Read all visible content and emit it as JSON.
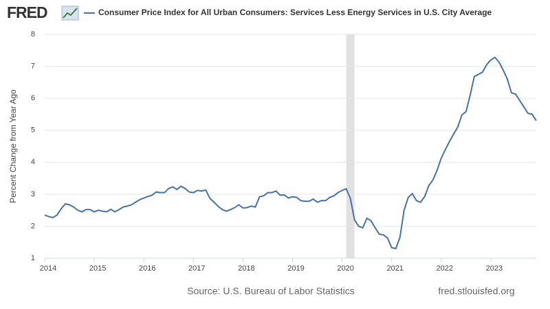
{
  "logo": "FRED",
  "chart_data": {
    "type": "line",
    "series": [
      {
        "name": "Consumer Price Index for All Urban Consumers: Services Less Energy Services in U.S. City Average",
        "color": "#4572a7",
        "values": [
          2.35,
          2.3,
          2.27,
          2.35,
          2.55,
          2.7,
          2.67,
          2.6,
          2.5,
          2.45,
          2.52,
          2.52,
          2.45,
          2.5,
          2.47,
          2.45,
          2.53,
          2.45,
          2.52,
          2.6,
          2.63,
          2.67,
          2.75,
          2.83,
          2.88,
          2.93,
          2.97,
          3.07,
          3.05,
          3.05,
          3.18,
          3.23,
          3.15,
          3.25,
          3.18,
          3.07,
          3.05,
          3.12,
          3.1,
          3.13,
          2.87,
          2.75,
          2.62,
          2.52,
          2.47,
          2.52,
          2.58,
          2.67,
          2.57,
          2.58,
          2.63,
          2.6,
          2.92,
          2.95,
          3.05,
          3.05,
          3.1,
          2.97,
          2.98,
          2.88,
          2.92,
          2.9,
          2.8,
          2.78,
          2.78,
          2.85,
          2.75,
          2.8,
          2.8,
          2.9,
          2.95,
          3.05,
          3.12,
          3.17,
          2.87,
          2.2,
          2.0,
          1.95,
          2.25,
          2.17,
          1.95,
          1.75,
          1.73,
          1.63,
          1.33,
          1.3,
          1.65,
          2.5,
          2.9,
          3.02,
          2.8,
          2.75,
          2.93,
          3.27,
          3.45,
          3.75,
          4.13,
          4.4,
          4.65,
          4.88,
          5.1,
          5.48,
          5.58,
          6.1,
          6.68,
          6.75,
          6.82,
          7.05,
          7.2,
          7.28,
          7.13,
          6.88,
          6.6,
          6.17,
          6.13,
          5.93,
          5.73,
          5.53,
          5.5,
          5.3
        ]
      }
    ],
    "x": [
      "2014-01",
      "2014-02",
      "2014-03",
      "2014-04",
      "2014-05",
      "2014-06",
      "2014-07",
      "2014-08",
      "2014-09",
      "2014-10",
      "2014-11",
      "2014-12",
      "2015-01",
      "2015-02",
      "2015-03",
      "2015-04",
      "2015-05",
      "2015-06",
      "2015-07",
      "2015-08",
      "2015-09",
      "2015-10",
      "2015-11",
      "2015-12",
      "2016-01",
      "2016-02",
      "2016-03",
      "2016-04",
      "2016-05",
      "2016-06",
      "2016-07",
      "2016-08",
      "2016-09",
      "2016-10",
      "2016-11",
      "2016-12",
      "2017-01",
      "2017-02",
      "2017-03",
      "2017-04",
      "2017-05",
      "2017-06",
      "2017-07",
      "2017-08",
      "2017-09",
      "2017-10",
      "2017-11",
      "2017-12",
      "2018-01",
      "2018-02",
      "2018-03",
      "2018-04",
      "2018-05",
      "2018-06",
      "2018-07",
      "2018-08",
      "2018-09",
      "2018-10",
      "2018-11",
      "2018-12",
      "2019-01",
      "2019-02",
      "2019-03",
      "2019-04",
      "2019-05",
      "2019-06",
      "2019-07",
      "2019-08",
      "2019-09",
      "2019-10",
      "2019-11",
      "2019-12",
      "2020-01",
      "2020-02",
      "2020-03",
      "2020-04",
      "2020-05",
      "2020-06",
      "2020-07",
      "2020-08",
      "2020-09",
      "2020-10",
      "2020-11",
      "2020-12",
      "2021-01",
      "2021-02",
      "2021-03",
      "2021-04",
      "2021-05",
      "2021-06",
      "2021-07",
      "2021-08",
      "2021-09",
      "2021-10",
      "2021-11",
      "2021-12",
      "2022-01",
      "2022-02",
      "2022-03",
      "2022-04",
      "2022-05",
      "2022-06",
      "2022-07",
      "2022-08",
      "2022-09",
      "2022-10",
      "2022-11",
      "2022-12",
      "2023-01",
      "2023-02",
      "2023-03",
      "2023-04",
      "2023-05",
      "2023-06",
      "2023-07",
      "2023-08",
      "2023-09",
      "2023-10",
      "2023-11",
      "2023-12"
    ],
    "xlim": [
      "2014-01",
      "2023-12"
    ],
    "xticks": [
      2014,
      2015,
      2016,
      2017,
      2018,
      2019,
      2020,
      2021,
      2022,
      2023
    ],
    "ylim": [
      1,
      8
    ],
    "yticks": [
      1,
      2,
      3,
      4,
      5,
      6,
      7,
      8
    ],
    "grid": true,
    "ylabel": "Percent Change from Year Ago",
    "shading": {
      "start": "2020-02",
      "end": "2020-04",
      "color": "#e1e1e1"
    },
    "source": "Source: U.S. Bureau of Labor Statistics",
    "url": "fred.stlouisfed.org"
  }
}
